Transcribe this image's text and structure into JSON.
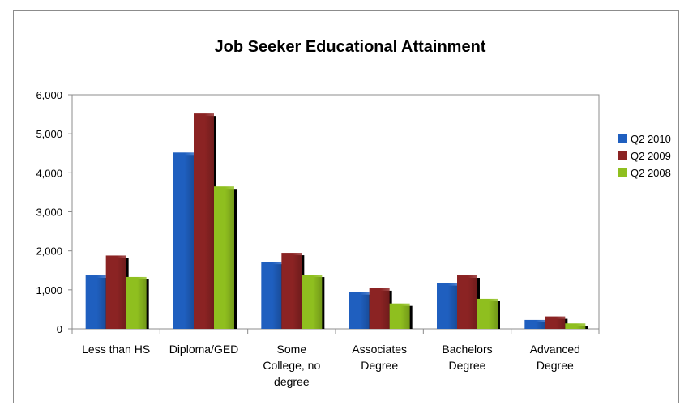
{
  "chart_data": {
    "type": "bar",
    "title": "Job Seeker Educational Attainment",
    "xlabel": "",
    "ylabel": "",
    "ylim": [
      0,
      6000
    ],
    "y_ticks": [
      "0",
      "1,000",
      "2,000",
      "3,000",
      "4,000",
      "5,000",
      "6,000"
    ],
    "grid": false,
    "legend_position": "right",
    "categories": [
      [
        "Less than HS"
      ],
      [
        "Diploma/GED"
      ],
      [
        "Some",
        "College, no",
        "degree"
      ],
      [
        "Associates",
        "Degree"
      ],
      [
        "Bachelors",
        "Degree"
      ],
      [
        "Advanced",
        "Degree"
      ]
    ],
    "series": [
      {
        "name": "Q2 2010",
        "color": "#1f5fbf",
        "values": [
          1370,
          4520,
          1720,
          940,
          1170,
          230
        ]
      },
      {
        "name": "Q2 2009",
        "color": "#8b2323",
        "values": [
          1880,
          5520,
          1950,
          1040,
          1370,
          320
        ]
      },
      {
        "name": "Q2 2008",
        "color": "#8fbf1f",
        "values": [
          1330,
          3650,
          1390,
          650,
          770,
          140
        ]
      }
    ]
  }
}
